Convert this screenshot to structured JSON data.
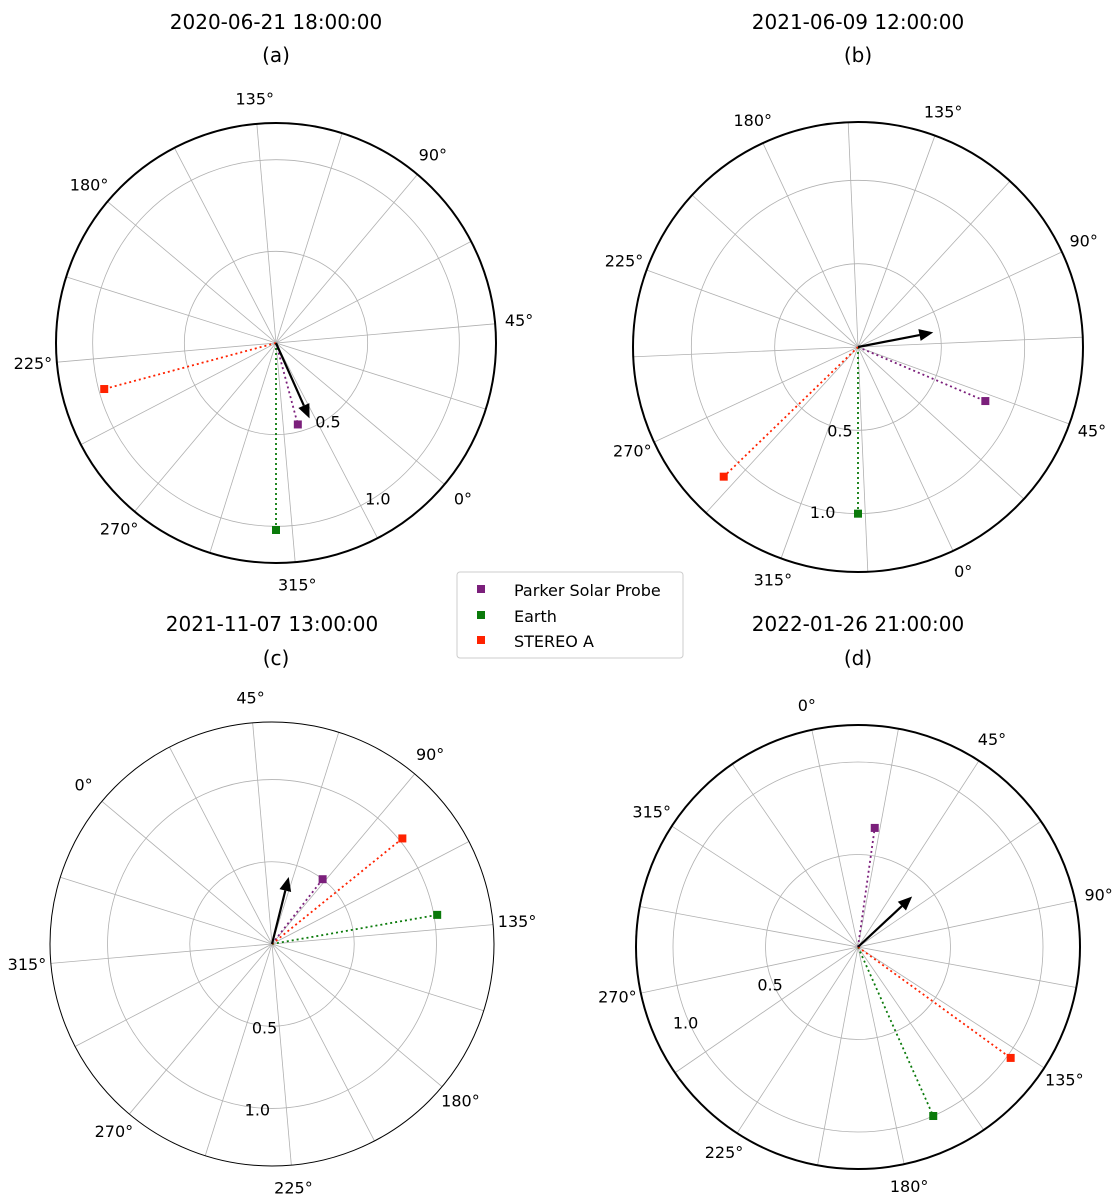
{
  "legend": {
    "entries": [
      {
        "label": "Parker Solar Probe",
        "color": "#7b1f7b"
      },
      {
        "label": "Earth",
        "color": "#0a7a0a"
      },
      {
        "label": "STEREO A",
        "color": "#ff2200"
      }
    ]
  },
  "chart_data": [
    {
      "type": "polar-scatter",
      "title": "2020-06-21 18:00:00",
      "subtitle": "(a)",
      "rlim": [
        0,
        1.2
      ],
      "rticks": [
        "0.5",
        "1.0"
      ],
      "theta_tick_labels": [
        "0°",
        "45°",
        "90°",
        "135°",
        "180°",
        "225°",
        "270°",
        "315°"
      ],
      "theta_offset_deg": -40,
      "theta_direction": 1,
      "rlabel_angle_deg": -17,
      "outer_circle_weight": "thick",
      "points": [
        {
          "name": "Parker Solar Probe",
          "r": 0.46,
          "theta_deg": 325,
          "color": "#7b1f7b"
        },
        {
          "name": "Earth",
          "r": 1.02,
          "theta_deg": 310,
          "color": "#0a7a0a"
        },
        {
          "name": "STEREO A",
          "r": 0.97,
          "theta_deg": 235,
          "color": "#ff2200"
        }
      ],
      "arrow": {
        "r": 0.45,
        "theta_deg": 334
      }
    },
    {
      "type": "polar-scatter",
      "title": "2021-06-09 12:00:00",
      "subtitle": "(b)",
      "rlim": [
        0,
        1.35
      ],
      "rticks": [
        "0.5",
        "1.0"
      ],
      "theta_tick_labels": [
        "0°",
        "45°",
        "90°",
        "135°",
        "180°",
        "225°",
        "270°",
        "315°"
      ],
      "theta_offset_deg": -65,
      "theta_direction": 1,
      "rlabel_angle_deg": -37,
      "outer_circle_weight": "thick",
      "points": [
        {
          "name": "Parker Solar Probe",
          "r": 0.83,
          "theta_deg": 42,
          "color": "#7b1f7b"
        },
        {
          "name": "Earth",
          "r": 1.0,
          "theta_deg": 335,
          "color": "#0a7a0a"
        },
        {
          "name": "STEREO A",
          "r": 1.12,
          "theta_deg": 289,
          "color": "#ff2200"
        }
      ],
      "arrow": {
        "r": 0.46,
        "theta_deg": 76
      }
    },
    {
      "type": "polar-scatter",
      "title": "2021-11-07 13:00:00",
      "subtitle": "(c)",
      "rlim": [
        0,
        1.35
      ],
      "rticks": [
        "0.5",
        "1.0"
      ],
      "theta_tick_labels": [
        "0°",
        "45°",
        "90°",
        "135°",
        "180°",
        "225°",
        "270°",
        "315°"
      ],
      "theta_offset_deg": 140,
      "theta_direction": -1,
      "rlabel_angle_deg": 125,
      "outer_circle_weight": "thin",
      "points": [
        {
          "name": "Parker Solar Probe",
          "r": 0.5,
          "theta_deg": 88,
          "color": "#7b1f7b"
        },
        {
          "name": "Earth",
          "r": 1.02,
          "theta_deg": 130,
          "color": "#0a7a0a"
        },
        {
          "name": "STEREO A",
          "r": 1.02,
          "theta_deg": 101,
          "color": "#ff2200"
        }
      ],
      "arrow": {
        "r": 0.42,
        "theta_deg": 64
      }
    },
    {
      "type": "polar-scatter",
      "title": "2022-01-26 21:00:00",
      "subtitle": "(d)",
      "rlim": [
        0,
        1.2
      ],
      "rticks": [
        "0.5",
        "1.0"
      ],
      "theta_tick_labels": [
        "0°",
        "45°",
        "90°",
        "135°",
        "180°",
        "225°",
        "270°",
        "315°"
      ],
      "theta_offset_deg": 102,
      "theta_direction": -1,
      "rlabel_angle_deg": 102,
      "outer_circle_weight": "thick",
      "points": [
        {
          "name": "Parker Solar Probe",
          "r": 0.65,
          "theta_deg": 20,
          "color": "#7b1f7b"
        },
        {
          "name": "Earth",
          "r": 1.0,
          "theta_deg": 168,
          "color": "#0a7a0a"
        },
        {
          "name": "STEREO A",
          "r": 1.02,
          "theta_deg": 138,
          "color": "#ff2200"
        }
      ],
      "arrow": {
        "r": 0.4,
        "theta_deg": 59
      }
    }
  ]
}
